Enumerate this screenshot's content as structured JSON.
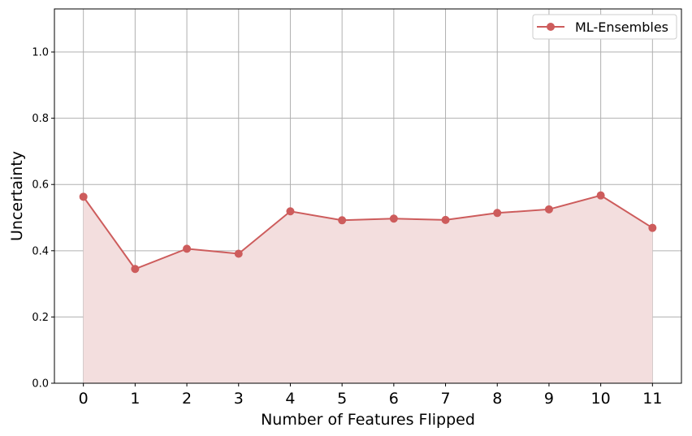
{
  "chart_data": {
    "type": "area",
    "title": "",
    "xlabel": "Number of Features Flipped",
    "ylabel": "Uncertainty",
    "x": [
      0,
      1,
      2,
      3,
      4,
      5,
      6,
      7,
      8,
      9,
      10,
      11
    ],
    "xticks": [
      "0",
      "1",
      "2",
      "3",
      "4",
      "5",
      "6",
      "7",
      "8",
      "9",
      "10",
      "11"
    ],
    "yticks": [
      "0.0",
      "0.2",
      "0.4",
      "0.6",
      "0.8",
      "1.0"
    ],
    "ylim": [
      0,
      1.13
    ],
    "xlim": [
      -0.56,
      11.56
    ],
    "grid": true,
    "legend_position": "top-right",
    "series": [
      {
        "name": "ML-Ensembles",
        "color": "#cd5c5c",
        "fill_color": "#f3dede",
        "marker": "circle",
        "values": [
          0.563,
          0.345,
          0.406,
          0.391,
          0.519,
          0.492,
          0.497,
          0.493,
          0.514,
          0.525,
          0.567,
          0.469
        ]
      }
    ]
  }
}
